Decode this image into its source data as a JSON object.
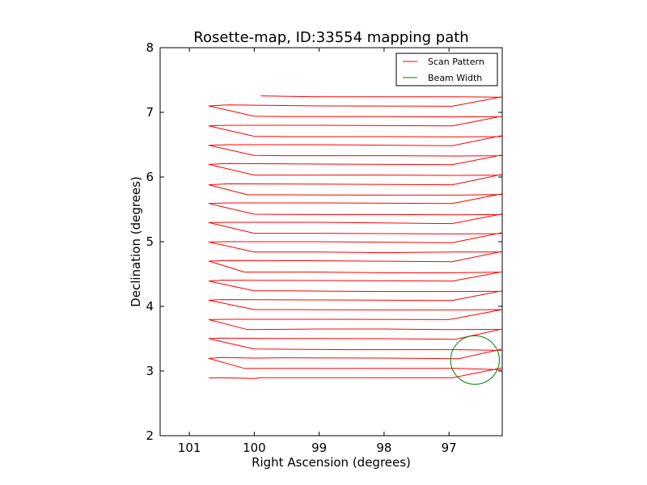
{
  "chart_data": {
    "type": "line",
    "title": "Rosette-map, ID:33554 mapping path",
    "xlabel": "Right Ascension (degrees)",
    "ylabel": "Declination (degrees)",
    "xlim": [
      101.45,
      96.18
    ],
    "ylim": [
      2,
      8
    ],
    "x_reversed": true,
    "x_ticks": [
      101,
      100,
      99,
      98,
      97
    ],
    "y_ticks": [
      2,
      3,
      4,
      5,
      6,
      7,
      8
    ],
    "grid": false,
    "legend": {
      "position": "top-right",
      "entries": [
        {
          "label": "Scan Pattern",
          "color": "#ff0000"
        },
        {
          "label": "Beam Width",
          "color": "#008000"
        }
      ]
    },
    "series": [
      {
        "name": "Scan Pattern",
        "color": "#ff0000",
        "points": [
          [
            100.7,
            2.895
          ],
          [
            100.5,
            2.895
          ],
          [
            100.0,
            2.885
          ],
          [
            99.9,
            2.897
          ],
          [
            98.5,
            2.897
          ],
          [
            96.95,
            2.895
          ],
          [
            96.18,
            3.05
          ],
          [
            96.18,
            3.02
          ],
          [
            96.88,
            3.04
          ],
          [
            98.0,
            3.04
          ],
          [
            99.0,
            3.04
          ],
          [
            100.15,
            3.04
          ],
          [
            100.7,
            3.195
          ],
          [
            100.5,
            3.21
          ],
          [
            100.0,
            3.2
          ],
          [
            99.5,
            3.205
          ],
          [
            98.0,
            3.2
          ],
          [
            96.85,
            3.19
          ],
          [
            96.18,
            3.34
          ],
          [
            96.18,
            3.32
          ],
          [
            96.88,
            3.33
          ],
          [
            98.5,
            3.33
          ],
          [
            100.0,
            3.34
          ],
          [
            100.7,
            3.5
          ],
          [
            100.55,
            3.51
          ],
          [
            100.0,
            3.505
          ],
          [
            98.0,
            3.5
          ],
          [
            96.9,
            3.49
          ],
          [
            96.18,
            3.65
          ],
          [
            96.18,
            3.645
          ],
          [
            96.92,
            3.64
          ],
          [
            97.0,
            3.64
          ],
          [
            98.0,
            3.65
          ],
          [
            99.0,
            3.65
          ],
          [
            100.1,
            3.64
          ],
          [
            100.7,
            3.795
          ],
          [
            100.4,
            3.8
          ],
          [
            99.0,
            3.8
          ],
          [
            97.0,
            3.795
          ],
          [
            96.18,
            3.95
          ],
          [
            96.18,
            3.95
          ],
          [
            96.88,
            3.945
          ],
          [
            98.0,
            3.945
          ],
          [
            99.5,
            3.95
          ],
          [
            100.0,
            3.95
          ],
          [
            100.7,
            4.095
          ],
          [
            100.5,
            4.105
          ],
          [
            99.0,
            4.1
          ],
          [
            96.95,
            4.09
          ],
          [
            96.18,
            4.24
          ],
          [
            96.18,
            4.235
          ],
          [
            96.88,
            4.23
          ],
          [
            98.0,
            4.23
          ],
          [
            99.5,
            4.24
          ],
          [
            100.0,
            4.24
          ],
          [
            100.7,
            4.39
          ],
          [
            100.5,
            4.405
          ],
          [
            99.0,
            4.4
          ],
          [
            96.95,
            4.39
          ],
          [
            96.18,
            4.535
          ],
          [
            96.18,
            4.53
          ],
          [
            96.88,
            4.52
          ],
          [
            98.0,
            4.52
          ],
          [
            99.0,
            4.53
          ],
          [
            100.15,
            4.53
          ],
          [
            100.7,
            4.7
          ],
          [
            100.4,
            4.71
          ],
          [
            99.0,
            4.705
          ],
          [
            96.95,
            4.69
          ],
          [
            96.18,
            4.85
          ],
          [
            96.18,
            4.84
          ],
          [
            96.92,
            4.84
          ],
          [
            98.0,
            4.83
          ],
          [
            99.0,
            4.84
          ],
          [
            100.0,
            4.84
          ],
          [
            100.7,
            4.995
          ],
          [
            100.4,
            5.0
          ],
          [
            99.0,
            5.0
          ],
          [
            96.95,
            4.985
          ],
          [
            96.18,
            5.14
          ],
          [
            96.18,
            5.125
          ],
          [
            96.9,
            5.12
          ],
          [
            98.0,
            5.125
          ],
          [
            99.0,
            5.13
          ],
          [
            100.0,
            5.13
          ],
          [
            100.7,
            5.295
          ],
          [
            100.4,
            5.3
          ],
          [
            99.0,
            5.3
          ],
          [
            96.95,
            5.28
          ],
          [
            96.18,
            5.43
          ],
          [
            96.18,
            5.42
          ],
          [
            96.9,
            5.415
          ],
          [
            98.0,
            5.42
          ],
          [
            99.0,
            5.42
          ],
          [
            100.0,
            5.425
          ],
          [
            100.7,
            5.59
          ],
          [
            100.4,
            5.6
          ],
          [
            99.0,
            5.6
          ],
          [
            96.95,
            5.59
          ],
          [
            96.18,
            5.74
          ],
          [
            96.18,
            5.73
          ],
          [
            96.9,
            5.72
          ],
          [
            98.0,
            5.72
          ],
          [
            99.5,
            5.725
          ],
          [
            100.1,
            5.725
          ],
          [
            100.7,
            5.88
          ],
          [
            100.4,
            5.895
          ],
          [
            99.0,
            5.89
          ],
          [
            96.95,
            5.88
          ],
          [
            96.18,
            6.04
          ],
          [
            96.18,
            6.03
          ],
          [
            96.9,
            6.025
          ],
          [
            98.0,
            6.03
          ],
          [
            99.5,
            6.03
          ],
          [
            100.0,
            6.03
          ],
          [
            100.7,
            6.195
          ],
          [
            100.4,
            6.21
          ],
          [
            99.0,
            6.2
          ],
          [
            96.95,
            6.19
          ],
          [
            96.18,
            6.34
          ],
          [
            96.18,
            6.33
          ],
          [
            96.92,
            6.325
          ],
          [
            98.0,
            6.33
          ],
          [
            99.5,
            6.33
          ],
          [
            100.0,
            6.335
          ],
          [
            100.7,
            6.49
          ],
          [
            100.4,
            6.5
          ],
          [
            99.0,
            6.5
          ],
          [
            96.95,
            6.485
          ],
          [
            96.18,
            6.64
          ],
          [
            96.18,
            6.625
          ],
          [
            96.9,
            6.62
          ],
          [
            98.0,
            6.625
          ],
          [
            99.5,
            6.625
          ],
          [
            100.0,
            6.63
          ],
          [
            100.7,
            6.79
          ],
          [
            100.4,
            6.8
          ],
          [
            99.0,
            6.8
          ],
          [
            96.95,
            6.79
          ],
          [
            96.18,
            6.94
          ],
          [
            96.18,
            6.935
          ],
          [
            96.92,
            6.93
          ],
          [
            98.0,
            6.935
          ],
          [
            99.5,
            6.935
          ],
          [
            100.0,
            6.94
          ],
          [
            100.7,
            7.1
          ],
          [
            100.4,
            7.115
          ],
          [
            99.0,
            7.1
          ],
          [
            96.95,
            7.095
          ],
          [
            96.18,
            7.24
          ],
          [
            96.18,
            7.235
          ],
          [
            96.9,
            7.24
          ],
          [
            98.0,
            7.24
          ],
          [
            99.0,
            7.24
          ],
          [
            99.9,
            7.255
          ]
        ]
      },
      {
        "name": "Beam Width",
        "color": "#008000",
        "shape": "circle",
        "center": [
          96.6,
          3.17
        ],
        "radius_deg": 0.375
      }
    ]
  }
}
